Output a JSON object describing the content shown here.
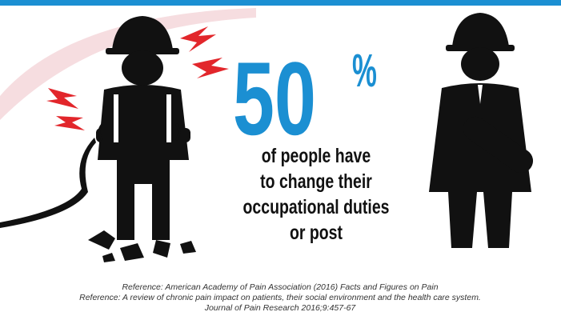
{
  "stat": {
    "number": "50",
    "unit": "%"
  },
  "message": [
    "of people have",
    "to change their",
    "occupational duties",
    "or post"
  ],
  "references": [
    "Reference: American Academy of Pain Association (2016) Facts and Figures on Pain",
    "Reference: A review of chronic pain impact on patients, their social environment and the health care system.",
    "Journal of Pain Research 2016;9:457-67"
  ]
}
